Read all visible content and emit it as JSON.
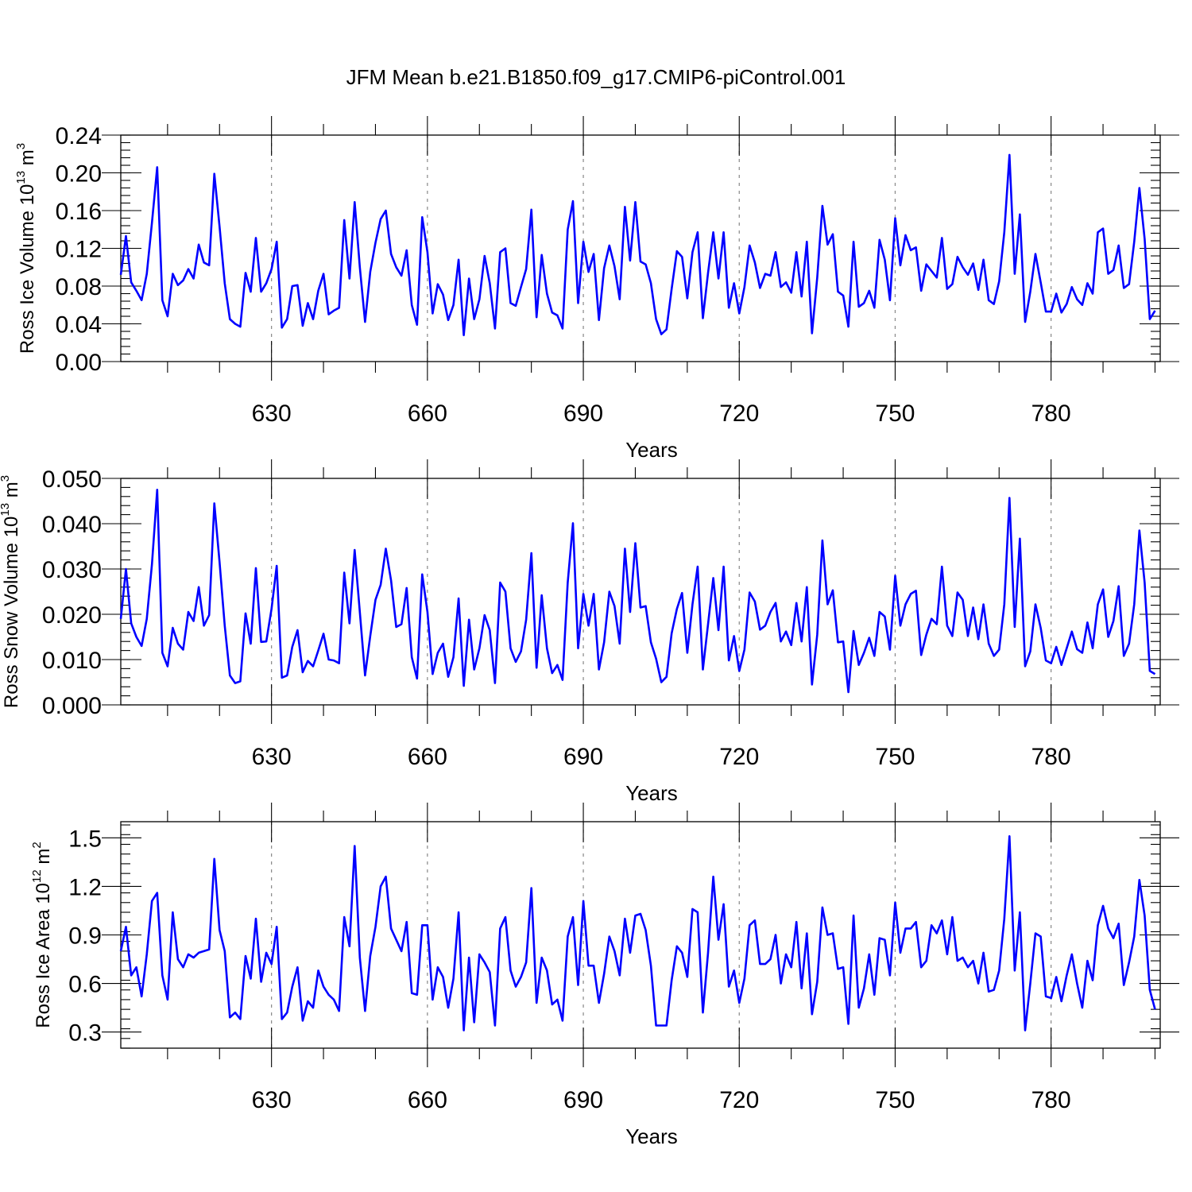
{
  "title": "JFM Mean b.e21.B1850.f09_g17.CMIP6-piControl.001",
  "chart_data": [
    {
      "type": "line",
      "xlabel": "Years",
      "ylabel": "Ross Ice Volume 10",
      "ylabel_exp": "13",
      "ylabel_unit": " m",
      "ylabel_unit_exp": "3",
      "xlim": [
        601,
        801
      ],
      "ylim": [
        0.0,
        0.24
      ],
      "xticks": [
        630,
        660,
        690,
        720,
        750,
        780
      ],
      "xtick_labels": [
        "630",
        "660",
        "690",
        "720",
        "750",
        "780"
      ],
      "yticks": [
        0.0,
        0.04,
        0.08,
        0.12,
        0.16,
        0.2,
        0.24
      ],
      "ytick_labels": [
        "0.00",
        "0.04",
        "0.08",
        "0.12",
        "0.16",
        "0.20",
        "0.24"
      ],
      "grid": "vertical dashed at x ticks",
      "series_color": "#0000ff",
      "x_start": 601,
      "values": [
        0.092,
        0.133,
        0.084,
        0.075,
        0.065,
        0.093,
        0.147,
        0.206,
        0.065,
        0.048,
        0.093,
        0.081,
        0.086,
        0.098,
        0.088,
        0.124,
        0.105,
        0.102,
        0.199,
        0.143,
        0.083,
        0.045,
        0.04,
        0.037,
        0.094,
        0.074,
        0.131,
        0.074,
        0.083,
        0.098,
        0.127,
        0.036,
        0.045,
        0.08,
        0.081,
        0.038,
        0.062,
        0.045,
        0.075,
        0.093,
        0.05,
        0.054,
        0.057,
        0.15,
        0.088,
        0.169,
        0.1,
        0.042,
        0.095,
        0.126,
        0.151,
        0.16,
        0.114,
        0.1,
        0.091,
        0.118,
        0.06,
        0.039,
        0.153,
        0.116,
        0.051,
        0.082,
        0.071,
        0.044,
        0.06,
        0.108,
        0.028,
        0.088,
        0.045,
        0.066,
        0.112,
        0.083,
        0.035,
        0.116,
        0.12,
        0.062,
        0.059,
        0.079,
        0.098,
        0.161,
        0.047,
        0.113,
        0.072,
        0.052,
        0.049,
        0.035,
        0.14,
        0.17,
        0.062,
        0.127,
        0.095,
        0.114,
        0.044,
        0.099,
        0.123,
        0.101,
        0.066,
        0.164,
        0.107,
        0.169,
        0.106,
        0.103,
        0.083,
        0.045,
        0.029,
        0.034,
        0.077,
        0.117,
        0.111,
        0.067,
        0.116,
        0.137,
        0.046,
        0.094,
        0.137,
        0.088,
        0.137,
        0.057,
        0.083,
        0.051,
        0.079,
        0.123,
        0.105,
        0.078,
        0.093,
        0.091,
        0.116,
        0.079,
        0.084,
        0.073,
        0.116,
        0.069,
        0.127,
        0.03,
        0.089,
        0.165,
        0.124,
        0.135,
        0.074,
        0.07,
        0.037,
        0.127,
        0.058,
        0.062,
        0.075,
        0.057,
        0.129,
        0.108,
        0.065,
        0.152,
        0.102,
        0.134,
        0.118,
        0.121,
        0.075,
        0.103,
        0.096,
        0.089,
        0.131,
        0.077,
        0.082,
        0.111,
        0.1,
        0.092,
        0.104,
        0.076,
        0.108,
        0.065,
        0.061,
        0.085,
        0.137,
        0.219,
        0.093,
        0.156,
        0.042,
        0.074,
        0.114,
        0.084,
        0.053,
        0.053,
        0.072,
        0.052,
        0.061,
        0.079,
        0.066,
        0.06,
        0.083,
        0.072,
        0.137,
        0.141,
        0.093,
        0.097,
        0.123,
        0.078,
        0.082,
        0.127,
        0.184,
        0.13,
        0.045,
        0.054
      ]
    },
    {
      "type": "line",
      "xlabel": "Years",
      "ylabel": "Ross Snow Volume 10",
      "ylabel_exp": "13",
      "ylabel_unit": " m",
      "ylabel_unit_exp": "3",
      "xlim": [
        601,
        801
      ],
      "ylim": [
        0.0,
        0.05
      ],
      "xticks": [
        630,
        660,
        690,
        720,
        750,
        780
      ],
      "xtick_labels": [
        "630",
        "660",
        "690",
        "720",
        "750",
        "780"
      ],
      "yticks": [
        0.0,
        0.01,
        0.02,
        0.03,
        0.04,
        0.05
      ],
      "ytick_labels": [
        "0.000",
        "0.010",
        "0.020",
        "0.030",
        "0.040",
        "0.050"
      ],
      "grid": "vertical dashed at x ticks",
      "series_color": "#0000ff",
      "x_start": 601,
      "values": [
        0.019,
        0.03,
        0.018,
        0.015,
        0.013,
        0.019,
        0.031,
        0.0475,
        0.0115,
        0.0085,
        0.017,
        0.0135,
        0.0122,
        0.0205,
        0.0185,
        0.026,
        0.0175,
        0.0198,
        0.0445,
        0.0315,
        0.0175,
        0.0065,
        0.0048,
        0.0052,
        0.0202,
        0.0135,
        0.0302,
        0.0139,
        0.014,
        0.0212,
        0.0307,
        0.006,
        0.0065,
        0.0128,
        0.0165,
        0.0072,
        0.0097,
        0.0085,
        0.012,
        0.0157,
        0.01,
        0.0098,
        0.0092,
        0.0292,
        0.018,
        0.0342,
        0.0205,
        0.0065,
        0.0152,
        0.0232,
        0.0265,
        0.0345,
        0.0275,
        0.0172,
        0.0178,
        0.0258,
        0.0105,
        0.0058,
        0.0288,
        0.0205,
        0.0068,
        0.0115,
        0.0135,
        0.0062,
        0.0105,
        0.0235,
        0.0042,
        0.0188,
        0.0078,
        0.0125,
        0.0198,
        0.0165,
        0.0048,
        0.027,
        0.025,
        0.0125,
        0.0095,
        0.0118,
        0.0188,
        0.0335,
        0.0082,
        0.0242,
        0.0125,
        0.007,
        0.0088,
        0.0055,
        0.027,
        0.0401,
        0.0125,
        0.0245,
        0.0175,
        0.0245,
        0.0078,
        0.0138,
        0.025,
        0.0218,
        0.0135,
        0.0345,
        0.0205,
        0.0357,
        0.0215,
        0.0218,
        0.0138,
        0.0102,
        0.005,
        0.0062,
        0.0158,
        0.0212,
        0.0247,
        0.0115,
        0.0222,
        0.0305,
        0.0078,
        0.0178,
        0.028,
        0.0165,
        0.0305,
        0.0098,
        0.0152,
        0.0075,
        0.0122,
        0.0248,
        0.0228,
        0.0166,
        0.0175,
        0.0205,
        0.0225,
        0.014,
        0.0162,
        0.0132,
        0.0225,
        0.014,
        0.026,
        0.0045,
        0.0155,
        0.0363,
        0.0222,
        0.0253,
        0.0138,
        0.014,
        0.0028,
        0.0163,
        0.0088,
        0.0115,
        0.0148,
        0.0108,
        0.0205,
        0.0195,
        0.0122,
        0.0285,
        0.0175,
        0.0222,
        0.0245,
        0.0252,
        0.011,
        0.0155,
        0.019,
        0.0178,
        0.0305,
        0.0175,
        0.0152,
        0.0248,
        0.0232,
        0.0152,
        0.0215,
        0.0145,
        0.0222,
        0.0135,
        0.0108,
        0.0122,
        0.0222,
        0.0457,
        0.0172,
        0.0367,
        0.0085,
        0.0118,
        0.0222,
        0.017,
        0.0098,
        0.0092,
        0.0128,
        0.0088,
        0.0125,
        0.0162,
        0.0123,
        0.0115,
        0.0182,
        0.0125,
        0.0222,
        0.0255,
        0.015,
        0.0185,
        0.0262,
        0.0108,
        0.0135,
        0.0222,
        0.0385,
        0.027,
        0.0075,
        0.0068
      ]
    },
    {
      "type": "line",
      "xlabel": "Years",
      "ylabel": "Ross Ice Area 10",
      "ylabel_exp": "12",
      "ylabel_unit": " m",
      "ylabel_unit_exp": "2",
      "xlim": [
        601,
        801
      ],
      "ylim": [
        0.2,
        1.6
      ],
      "xticks": [
        630,
        660,
        690,
        720,
        750,
        780
      ],
      "xtick_labels": [
        "630",
        "660",
        "690",
        "720",
        "750",
        "780"
      ],
      "yticks": [
        0.3,
        0.6,
        0.9,
        1.2,
        1.5
      ],
      "ytick_labels": [
        "0.3",
        "0.6",
        "0.9",
        "1.2",
        "1.5"
      ],
      "grid": "vertical dashed at x ticks",
      "series_color": "#0000ff",
      "x_start": 601,
      "values": [
        0.8,
        0.95,
        0.65,
        0.7,
        0.52,
        0.78,
        1.11,
        1.16,
        0.65,
        0.5,
        1.04,
        0.75,
        0.7,
        0.78,
        0.76,
        0.79,
        0.8,
        0.81,
        1.37,
        0.93,
        0.8,
        0.39,
        0.42,
        0.38,
        0.77,
        0.63,
        1.0,
        0.61,
        0.79,
        0.72,
        0.95,
        0.38,
        0.42,
        0.58,
        0.7,
        0.37,
        0.49,
        0.45,
        0.68,
        0.58,
        0.53,
        0.5,
        0.43,
        1.01,
        0.83,
        1.45,
        0.76,
        0.43,
        0.77,
        0.95,
        1.2,
        1.26,
        0.94,
        0.87,
        0.8,
        0.98,
        0.54,
        0.53,
        0.96,
        0.96,
        0.5,
        0.7,
        0.64,
        0.45,
        0.63,
        1.04,
        0.31,
        0.76,
        0.36,
        0.78,
        0.73,
        0.67,
        0.34,
        0.94,
        1.01,
        0.68,
        0.58,
        0.64,
        0.73,
        1.19,
        0.48,
        0.76,
        0.68,
        0.47,
        0.5,
        0.37,
        0.89,
        1.01,
        0.59,
        1.11,
        0.71,
        0.71,
        0.48,
        0.66,
        0.89,
        0.8,
        0.65,
        1.0,
        0.79,
        1.02,
        1.03,
        0.93,
        0.71,
        0.34,
        0.34,
        0.34,
        0.62,
        0.83,
        0.79,
        0.64,
        1.06,
        1.04,
        0.42,
        0.79,
        1.26,
        0.87,
        1.09,
        0.58,
        0.68,
        0.48,
        0.63,
        0.96,
        0.99,
        0.72,
        0.72,
        0.75,
        0.9,
        0.6,
        0.78,
        0.7,
        0.98,
        0.57,
        0.91,
        0.41,
        0.61,
        1.07,
        0.9,
        0.91,
        0.69,
        0.7,
        0.35,
        1.02,
        0.45,
        0.57,
        0.78,
        0.53,
        0.88,
        0.87,
        0.65,
        1.1,
        0.79,
        0.94,
        0.94,
        0.98,
        0.7,
        0.74,
        0.96,
        0.91,
        0.99,
        0.78,
        1.01,
        0.74,
        0.76,
        0.7,
        0.74,
        0.6,
        0.79,
        0.55,
        0.56,
        0.68,
        1.0,
        1.51,
        0.68,
        1.04,
        0.31,
        0.6,
        0.91,
        0.89,
        0.52,
        0.51,
        0.64,
        0.49,
        0.65,
        0.78,
        0.6,
        0.45,
        0.74,
        0.62,
        0.96,
        1.08,
        0.94,
        0.88,
        0.97,
        0.59,
        0.73,
        0.89,
        1.24,
        1.02,
        0.56,
        0.44
      ]
    }
  ]
}
